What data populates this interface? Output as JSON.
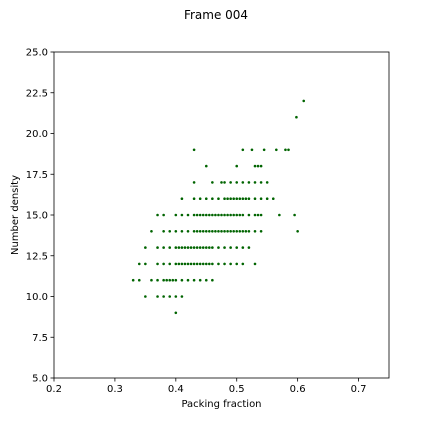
{
  "chart_data": {
    "type": "scatter",
    "title": "Frame 004",
    "xlabel": "Packing fraction",
    "ylabel": "Number density",
    "xlim": [
      0.2,
      0.75
    ],
    "ylim": [
      5.0,
      25.0
    ],
    "xticks": [
      0.2,
      0.3,
      0.4,
      0.5,
      0.6,
      0.7
    ],
    "xtick_labels": [
      "0.2",
      "0.3",
      "0.4",
      "0.5",
      "0.6",
      "0.7"
    ],
    "yticks": [
      5.0,
      7.5,
      10.0,
      12.5,
      15.0,
      17.5,
      20.0,
      22.5,
      25.0
    ],
    "ytick_labels": [
      "5.0",
      "7.5",
      "10.0",
      "12.5",
      "15.0",
      "17.5",
      "20.0",
      "22.5",
      "25.0"
    ],
    "grid": false,
    "marker_color": "#006400",
    "points": [
      [
        0.4,
        9
      ],
      [
        0.35,
        10
      ],
      [
        0.37,
        10
      ],
      [
        0.38,
        10
      ],
      [
        0.39,
        10
      ],
      [
        0.4,
        10
      ],
      [
        0.41,
        10
      ],
      [
        0.33,
        11
      ],
      [
        0.34,
        11
      ],
      [
        0.36,
        11
      ],
      [
        0.37,
        11
      ],
      [
        0.38,
        11
      ],
      [
        0.385,
        11
      ],
      [
        0.39,
        11
      ],
      [
        0.395,
        11
      ],
      [
        0.4,
        11
      ],
      [
        0.41,
        11
      ],
      [
        0.42,
        11
      ],
      [
        0.43,
        11
      ],
      [
        0.44,
        11
      ],
      [
        0.45,
        11
      ],
      [
        0.46,
        11
      ],
      [
        0.34,
        12
      ],
      [
        0.35,
        12
      ],
      [
        0.37,
        12
      ],
      [
        0.38,
        12
      ],
      [
        0.39,
        12
      ],
      [
        0.4,
        12
      ],
      [
        0.405,
        12
      ],
      [
        0.41,
        12
      ],
      [
        0.415,
        12
      ],
      [
        0.42,
        12
      ],
      [
        0.425,
        12
      ],
      [
        0.43,
        12
      ],
      [
        0.435,
        12
      ],
      [
        0.44,
        12
      ],
      [
        0.445,
        12
      ],
      [
        0.45,
        12
      ],
      [
        0.455,
        12
      ],
      [
        0.46,
        12
      ],
      [
        0.47,
        12
      ],
      [
        0.48,
        12
      ],
      [
        0.49,
        12
      ],
      [
        0.5,
        12
      ],
      [
        0.51,
        12
      ],
      [
        0.53,
        12
      ],
      [
        0.35,
        13
      ],
      [
        0.37,
        13
      ],
      [
        0.38,
        13
      ],
      [
        0.39,
        13
      ],
      [
        0.4,
        13
      ],
      [
        0.405,
        13
      ],
      [
        0.41,
        13
      ],
      [
        0.415,
        13
      ],
      [
        0.42,
        13
      ],
      [
        0.425,
        13
      ],
      [
        0.43,
        13
      ],
      [
        0.435,
        13
      ],
      [
        0.44,
        13
      ],
      [
        0.445,
        13
      ],
      [
        0.45,
        13
      ],
      [
        0.455,
        13
      ],
      [
        0.46,
        13
      ],
      [
        0.47,
        13
      ],
      [
        0.48,
        13
      ],
      [
        0.49,
        13
      ],
      [
        0.5,
        13
      ],
      [
        0.51,
        13
      ],
      [
        0.52,
        13
      ],
      [
        0.36,
        14
      ],
      [
        0.38,
        14
      ],
      [
        0.39,
        14
      ],
      [
        0.4,
        14
      ],
      [
        0.41,
        14
      ],
      [
        0.42,
        14
      ],
      [
        0.43,
        14
      ],
      [
        0.435,
        14
      ],
      [
        0.44,
        14
      ],
      [
        0.445,
        14
      ],
      [
        0.45,
        14
      ],
      [
        0.455,
        14
      ],
      [
        0.46,
        14
      ],
      [
        0.465,
        14
      ],
      [
        0.47,
        14
      ],
      [
        0.475,
        14
      ],
      [
        0.48,
        14
      ],
      [
        0.485,
        14
      ],
      [
        0.49,
        14
      ],
      [
        0.495,
        14
      ],
      [
        0.5,
        14
      ],
      [
        0.505,
        14
      ],
      [
        0.51,
        14
      ],
      [
        0.515,
        14
      ],
      [
        0.52,
        14
      ],
      [
        0.53,
        14
      ],
      [
        0.54,
        14
      ],
      [
        0.6,
        14
      ],
      [
        0.37,
        15
      ],
      [
        0.38,
        15
      ],
      [
        0.4,
        15
      ],
      [
        0.41,
        15
      ],
      [
        0.42,
        15
      ],
      [
        0.43,
        15
      ],
      [
        0.435,
        15
      ],
      [
        0.44,
        15
      ],
      [
        0.445,
        15
      ],
      [
        0.45,
        15
      ],
      [
        0.455,
        15
      ],
      [
        0.46,
        15
      ],
      [
        0.465,
        15
      ],
      [
        0.47,
        15
      ],
      [
        0.475,
        15
      ],
      [
        0.48,
        15
      ],
      [
        0.485,
        15
      ],
      [
        0.49,
        15
      ],
      [
        0.495,
        15
      ],
      [
        0.5,
        15
      ],
      [
        0.505,
        15
      ],
      [
        0.51,
        15
      ],
      [
        0.52,
        15
      ],
      [
        0.53,
        15
      ],
      [
        0.535,
        15
      ],
      [
        0.54,
        15
      ],
      [
        0.57,
        15
      ],
      [
        0.595,
        15
      ],
      [
        0.41,
        16
      ],
      [
        0.43,
        16
      ],
      [
        0.44,
        16
      ],
      [
        0.45,
        16
      ],
      [
        0.46,
        16
      ],
      [
        0.47,
        16
      ],
      [
        0.48,
        16
      ],
      [
        0.485,
        16
      ],
      [
        0.49,
        16
      ],
      [
        0.495,
        16
      ],
      [
        0.5,
        16
      ],
      [
        0.505,
        16
      ],
      [
        0.51,
        16
      ],
      [
        0.515,
        16
      ],
      [
        0.52,
        16
      ],
      [
        0.53,
        16
      ],
      [
        0.54,
        16
      ],
      [
        0.55,
        16
      ],
      [
        0.56,
        16
      ],
      [
        0.43,
        17
      ],
      [
        0.46,
        17
      ],
      [
        0.475,
        17
      ],
      [
        0.48,
        17
      ],
      [
        0.49,
        17
      ],
      [
        0.5,
        17
      ],
      [
        0.51,
        17
      ],
      [
        0.52,
        17
      ],
      [
        0.53,
        17
      ],
      [
        0.54,
        17
      ],
      [
        0.55,
        17
      ],
      [
        0.45,
        18
      ],
      [
        0.5,
        18
      ],
      [
        0.53,
        18
      ],
      [
        0.535,
        18
      ],
      [
        0.54,
        18
      ],
      [
        0.43,
        19
      ],
      [
        0.51,
        19
      ],
      [
        0.525,
        19
      ],
      [
        0.545,
        19
      ],
      [
        0.565,
        19
      ],
      [
        0.58,
        19
      ],
      [
        0.585,
        19
      ],
      [
        0.598,
        21
      ],
      [
        0.61,
        22
      ]
    ]
  }
}
